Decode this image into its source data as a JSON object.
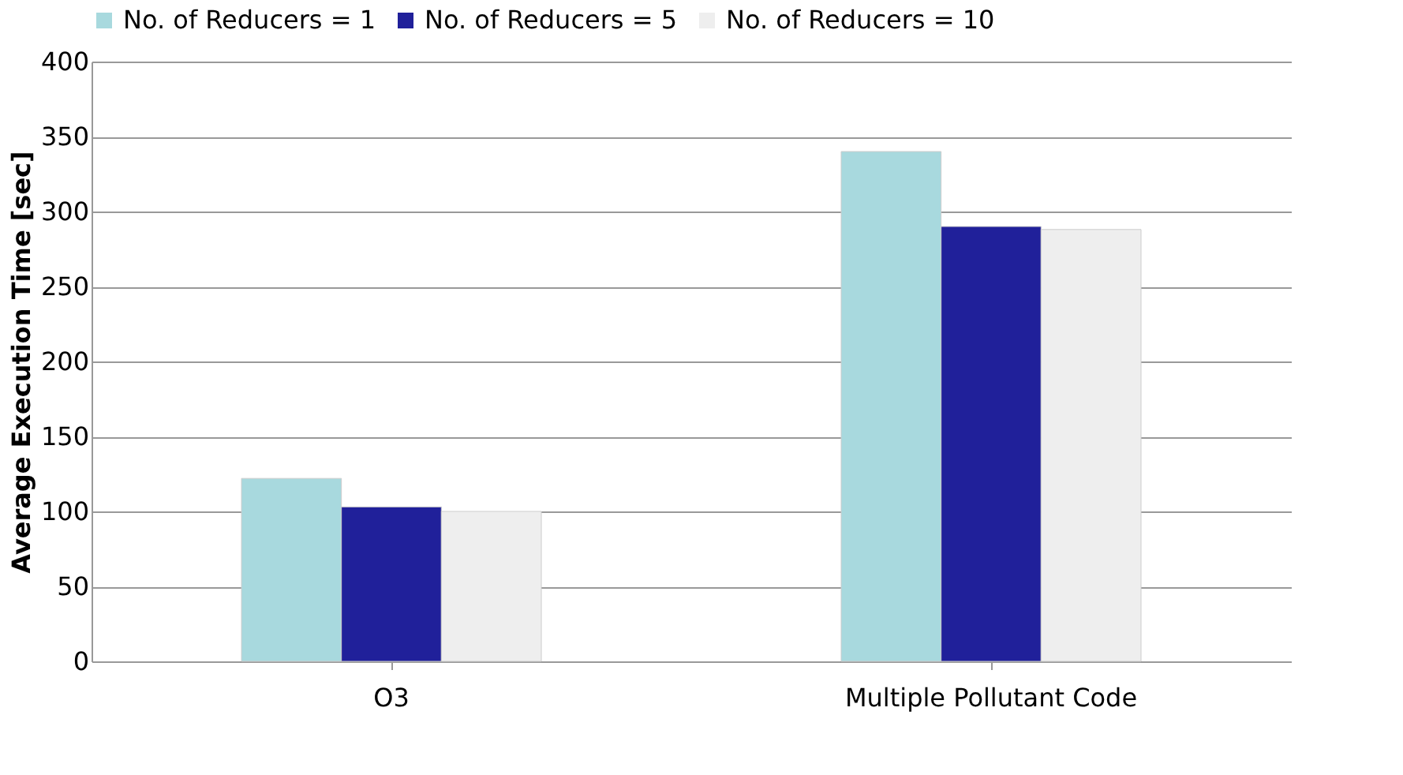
{
  "chart_data": {
    "type": "bar",
    "ylabel": "Average Execution Time [sec]",
    "categories": [
      "O3",
      "Multiple Pollutant Code"
    ],
    "series": [
      {
        "name": "No. of Reducers = 1",
        "color": "#a8d9de",
        "values": [
          122,
          340
        ]
      },
      {
        "name": "No. of Reducers = 5",
        "color": "#20209a",
        "values": [
          103,
          290
        ]
      },
      {
        "name": "No. of Reducers = 10",
        "color": "#eeeeee",
        "values": [
          100,
          288
        ]
      }
    ],
    "ylim": [
      0,
      400
    ],
    "yticks": [
      0,
      50,
      100,
      150,
      200,
      250,
      300,
      350,
      400
    ],
    "grid": "y",
    "legend": "top"
  }
}
